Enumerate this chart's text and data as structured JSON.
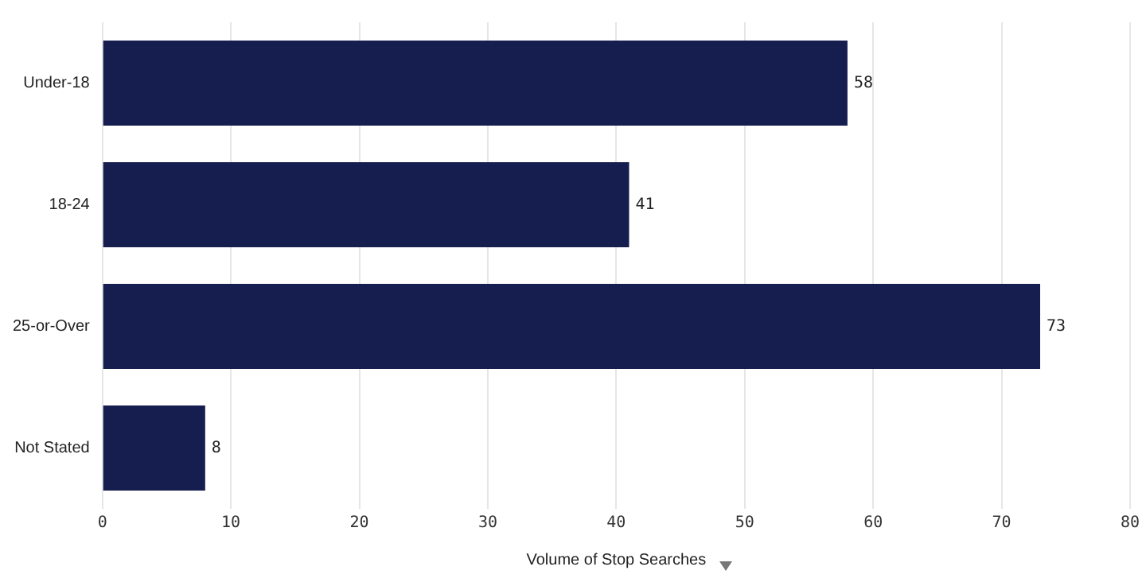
{
  "chart_data": {
    "type": "bar",
    "orientation": "horizontal",
    "xlabel": "Volume of Stop Searches",
    "categories": [
      "Under-18",
      "18-24",
      "25-or-Over",
      "Not Stated"
    ],
    "values": [
      58,
      41,
      73,
      8
    ],
    "color": "#161d4f",
    "xlim": [
      0,
      80
    ],
    "xticks": [
      0,
      10,
      20,
      30,
      40,
      50,
      60,
      70,
      80
    ],
    "grid": "x",
    "data_labels": true,
    "legend": false
  }
}
